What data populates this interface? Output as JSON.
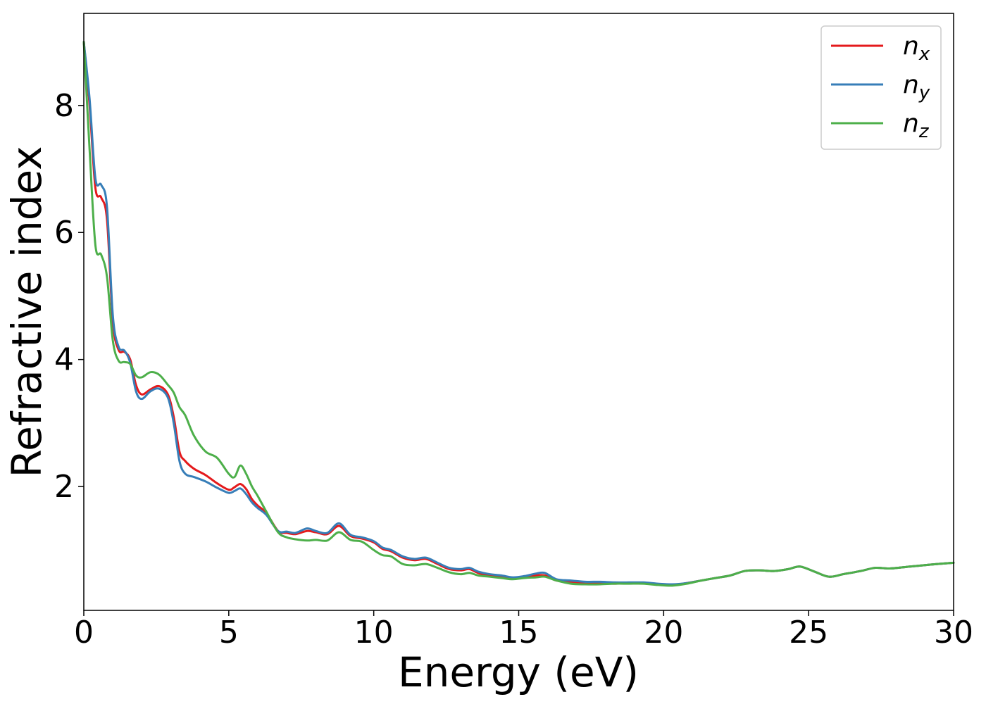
{
  "chart_data": {
    "type": "line",
    "title": "",
    "xlabel": "Energy (eV)",
    "ylabel": "Refractive index",
    "xlim": [
      0,
      30
    ],
    "ylim": [
      0.05,
      9.45
    ],
    "xticks": [
      0,
      5,
      10,
      15,
      20,
      25,
      30
    ],
    "xtick_labels": [
      "0",
      "5",
      "10",
      "15",
      "20",
      "25",
      "30"
    ],
    "yticks": [
      2,
      4,
      6,
      8
    ],
    "ytick_labels": [
      "2",
      "4",
      "6",
      "8"
    ],
    "grid": false,
    "legend_position": "top-right",
    "series": [
      {
        "name": "n",
        "subscript": "x",
        "color": "#e41a1c",
        "x": [
          0,
          0.2,
          0.4,
          0.6,
          0.8,
          1.0,
          1.2,
          1.4,
          1.6,
          1.8,
          2.0,
          2.3,
          2.6,
          2.9,
          3.1,
          3.3,
          3.5,
          3.8,
          4.2,
          4.6,
          5.0,
          5.2,
          5.4,
          5.6,
          5.8,
          6.0,
          6.3,
          6.7,
          7.0,
          7.3,
          7.7,
          8.0,
          8.4,
          8.8,
          9.2,
          9.6,
          10.0,
          10.3,
          10.6,
          11.0,
          11.4,
          11.8,
          12.2,
          12.6,
          13.0,
          13.3,
          13.6,
          14.0,
          14.4,
          14.8,
          15.2,
          15.6,
          15.9,
          16.3,
          16.8,
          17.3,
          17.8,
          18.3,
          18.8,
          19.3,
          19.8,
          20.3,
          20.8,
          21.3,
          21.8,
          22.3,
          22.8,
          23.3,
          23.8,
          24.3,
          24.7,
          25.2,
          25.7,
          26.2,
          26.8,
          27.3,
          27.8,
          28.5,
          29.2,
          30.0
        ],
        "y": [
          9.0,
          8.0,
          6.7,
          6.55,
          6.2,
          4.6,
          4.15,
          4.12,
          4.0,
          3.6,
          3.45,
          3.53,
          3.58,
          3.45,
          3.1,
          2.55,
          2.4,
          2.28,
          2.18,
          2.05,
          1.95,
          1.99,
          2.04,
          1.96,
          1.8,
          1.7,
          1.58,
          1.3,
          1.27,
          1.25,
          1.3,
          1.28,
          1.25,
          1.38,
          1.22,
          1.18,
          1.12,
          1.02,
          0.98,
          0.88,
          0.84,
          0.86,
          0.78,
          0.7,
          0.68,
          0.7,
          0.64,
          0.6,
          0.58,
          0.55,
          0.57,
          0.6,
          0.6,
          0.52,
          0.5,
          0.47,
          0.48,
          0.47,
          0.48,
          0.48,
          0.46,
          0.45,
          0.48,
          0.52,
          0.56,
          0.6,
          0.67,
          0.68,
          0.67,
          0.7,
          0.74,
          0.66,
          0.58,
          0.62,
          0.67,
          0.72,
          0.71,
          0.74,
          0.77,
          0.8
        ]
      },
      {
        "name": "n",
        "subscript": "y",
        "color": "#377eb8",
        "x": [
          0,
          0.2,
          0.4,
          0.6,
          0.8,
          1.0,
          1.2,
          1.4,
          1.6,
          1.8,
          2.0,
          2.3,
          2.6,
          2.9,
          3.1,
          3.3,
          3.5,
          3.8,
          4.2,
          4.6,
          5.0,
          5.2,
          5.4,
          5.6,
          5.8,
          6.0,
          6.3,
          6.7,
          7.0,
          7.3,
          7.7,
          8.0,
          8.4,
          8.8,
          9.2,
          9.6,
          10.0,
          10.3,
          10.6,
          11.0,
          11.4,
          11.8,
          12.2,
          12.6,
          13.0,
          13.3,
          13.6,
          14.0,
          14.4,
          14.8,
          15.2,
          15.6,
          15.9,
          16.3,
          16.8,
          17.3,
          17.8,
          18.3,
          18.8,
          19.3,
          19.8,
          20.3,
          20.8,
          21.3,
          21.8,
          22.3,
          22.8,
          23.3,
          23.8,
          24.3,
          24.7,
          25.2,
          25.7,
          26.2,
          26.8,
          27.3,
          27.8,
          28.5,
          29.2,
          30.0
        ],
        "y": [
          9.0,
          8.1,
          6.85,
          6.75,
          6.4,
          4.7,
          4.2,
          4.14,
          3.95,
          3.5,
          3.38,
          3.5,
          3.54,
          3.4,
          3.0,
          2.4,
          2.2,
          2.15,
          2.08,
          1.98,
          1.9,
          1.93,
          1.97,
          1.88,
          1.75,
          1.66,
          1.55,
          1.3,
          1.29,
          1.27,
          1.34,
          1.3,
          1.27,
          1.42,
          1.24,
          1.2,
          1.14,
          1.04,
          1.0,
          0.9,
          0.86,
          0.88,
          0.8,
          0.72,
          0.7,
          0.72,
          0.66,
          0.62,
          0.6,
          0.57,
          0.59,
          0.63,
          0.64,
          0.54,
          0.52,
          0.5,
          0.5,
          0.49,
          0.49,
          0.49,
          0.47,
          0.46,
          0.48,
          0.52,
          0.56,
          0.6,
          0.67,
          0.68,
          0.67,
          0.7,
          0.74,
          0.66,
          0.58,
          0.62,
          0.67,
          0.72,
          0.71,
          0.74,
          0.77,
          0.8
        ]
      },
      {
        "name": "n",
        "subscript": "z",
        "color": "#4daf4a",
        "x": [
          0,
          0.2,
          0.4,
          0.6,
          0.8,
          1.0,
          1.2,
          1.4,
          1.6,
          1.8,
          2.0,
          2.3,
          2.6,
          2.9,
          3.1,
          3.3,
          3.5,
          3.8,
          4.2,
          4.6,
          5.0,
          5.2,
          5.4,
          5.6,
          5.8,
          6.0,
          6.3,
          6.7,
          7.0,
          7.3,
          7.7,
          8.0,
          8.4,
          8.8,
          9.2,
          9.6,
          10.0,
          10.3,
          10.6,
          11.0,
          11.4,
          11.8,
          12.2,
          12.6,
          13.0,
          13.3,
          13.6,
          14.0,
          14.4,
          14.8,
          15.2,
          15.6,
          15.9,
          16.3,
          16.8,
          17.3,
          17.8,
          18.3,
          18.8,
          19.3,
          19.8,
          20.3,
          20.8,
          21.3,
          21.8,
          22.3,
          22.8,
          23.3,
          23.8,
          24.3,
          24.7,
          25.2,
          25.7,
          26.2,
          26.8,
          27.3,
          27.8,
          28.5,
          29.2,
          30.0
        ],
        "y": [
          9.0,
          7.3,
          5.8,
          5.65,
          5.3,
          4.3,
          3.98,
          3.96,
          3.93,
          3.75,
          3.72,
          3.8,
          3.76,
          3.6,
          3.48,
          3.25,
          3.12,
          2.8,
          2.55,
          2.45,
          2.2,
          2.15,
          2.33,
          2.2,
          2.0,
          1.85,
          1.6,
          1.28,
          1.2,
          1.17,
          1.15,
          1.16,
          1.15,
          1.28,
          1.16,
          1.13,
          1.0,
          0.92,
          0.9,
          0.78,
          0.76,
          0.78,
          0.72,
          0.65,
          0.62,
          0.64,
          0.6,
          0.58,
          0.56,
          0.54,
          0.56,
          0.57,
          0.58,
          0.52,
          0.47,
          0.46,
          0.46,
          0.47,
          0.47,
          0.47,
          0.45,
          0.44,
          0.47,
          0.52,
          0.56,
          0.6,
          0.67,
          0.68,
          0.67,
          0.7,
          0.74,
          0.66,
          0.58,
          0.62,
          0.67,
          0.72,
          0.71,
          0.74,
          0.77,
          0.8
        ]
      }
    ]
  }
}
